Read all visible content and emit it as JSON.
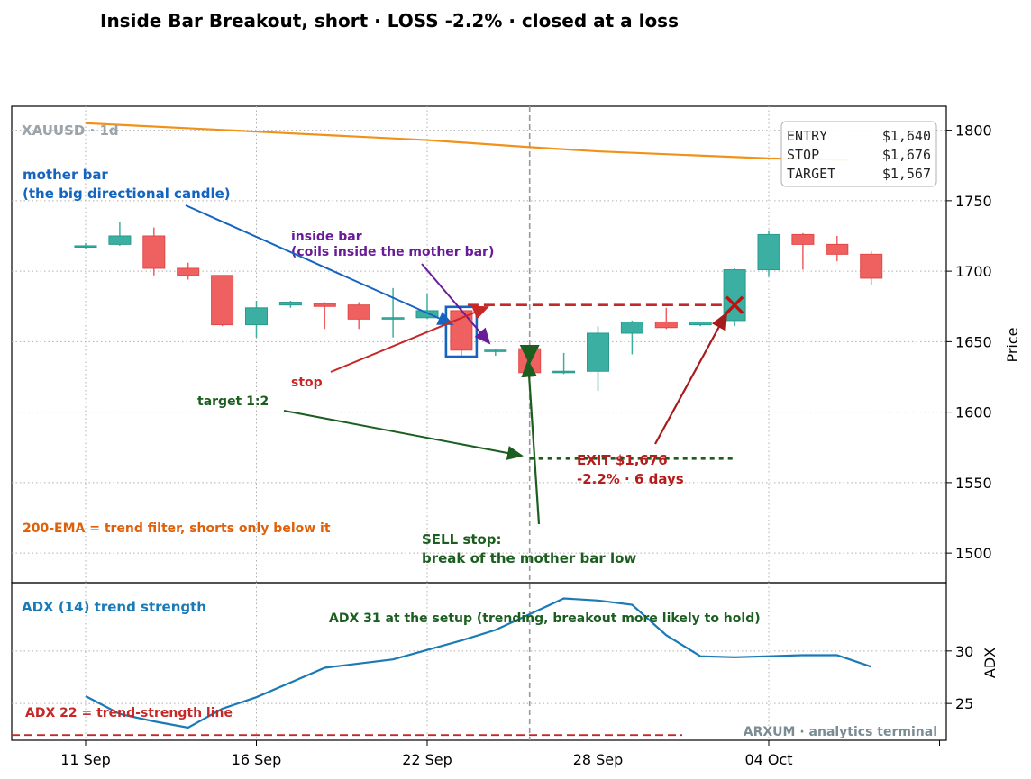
{
  "title": "Inside Bar Breakout, short · LOSS -2.2% · closed at a loss",
  "chart_data": {
    "type": "candlestick",
    "symbol_label": "XAUUSD · 1d",
    "x_labels": [
      "11 Sep",
      "16 Sep",
      "22 Sep",
      "28 Sep",
      "04 Oct"
    ],
    "x_tick_indices": [
      0,
      5,
      10,
      15,
      20
    ],
    "candles": [
      {
        "o": 1717,
        "h": 1720,
        "l": 1716,
        "c": 1718
      },
      {
        "o": 1719,
        "h": 1735,
        "l": 1718,
        "c": 1725
      },
      {
        "o": 1725,
        "h": 1731,
        "l": 1697,
        "c": 1702
      },
      {
        "o": 1702,
        "h": 1706,
        "l": 1694,
        "c": 1697
      },
      {
        "o": 1697,
        "h": 1697,
        "l": 1661,
        "c": 1662
      },
      {
        "o": 1662,
        "h": 1679,
        "l": 1653,
        "c": 1674
      },
      {
        "o": 1676,
        "h": 1679,
        "l": 1674,
        "c": 1678
      },
      {
        "o": 1677,
        "h": 1678,
        "l": 1659,
        "c": 1675
      },
      {
        "o": 1676,
        "h": 1678,
        "l": 1659,
        "c": 1666
      },
      {
        "o": 1666,
        "h": 1688,
        "l": 1653,
        "c": 1667
      },
      {
        "o": 1667,
        "h": 1684,
        "l": 1666,
        "c": 1672
      },
      {
        "o": 1672,
        "h": 1674,
        "l": 1640,
        "c": 1644
      },
      {
        "o": 1643,
        "h": 1645,
        "l": 1640,
        "c": 1644
      },
      {
        "o": 1645,
        "h": 1645,
        "l": 1623,
        "c": 1628
      },
      {
        "o": 1628,
        "h": 1642,
        "l": 1627,
        "c": 1629
      },
      {
        "o": 1629,
        "h": 1661,
        "l": 1615,
        "c": 1656
      },
      {
        "o": 1656,
        "h": 1665,
        "l": 1641,
        "c": 1664
      },
      {
        "o": 1664,
        "h": 1674,
        "l": 1659,
        "c": 1660
      },
      {
        "o": 1662,
        "h": 1664,
        "l": 1661,
        "c": 1664
      },
      {
        "o": 1665,
        "h": 1702,
        "l": 1661,
        "c": 1701
      },
      {
        "o": 1701,
        "h": 1729,
        "l": 1696,
        "c": 1726
      },
      {
        "o": 1726,
        "h": 1727,
        "l": 1701,
        "c": 1719
      },
      {
        "o": 1719,
        "h": 1725,
        "l": 1707,
        "c": 1712
      },
      {
        "o": 1712,
        "h": 1714,
        "l": 1690,
        "c": 1695
      }
    ],
    "ema200": [
      [
        0,
        1805
      ],
      [
        5,
        1799
      ],
      [
        10,
        1793
      ],
      [
        13,
        1788
      ],
      [
        15,
        1785
      ],
      [
        20,
        1780
      ],
      [
        22.3,
        1779
      ]
    ],
    "y_ticks": [
      1500,
      1550,
      1600,
      1650,
      1700,
      1750,
      1800
    ],
    "ylim": [
      1479,
      1817
    ],
    "ylabel": "Price",
    "entry": 1640,
    "stop": 1676,
    "target": 1567,
    "entry_index": 13,
    "exit_index": 19,
    "adx": [
      [
        0,
        25.7
      ],
      [
        1,
        24.0
      ],
      [
        2,
        23.3
      ],
      [
        3,
        22.7
      ],
      [
        4,
        24.5
      ],
      [
        5,
        25.6
      ],
      [
        6,
        27.0
      ],
      [
        7,
        28.4
      ],
      [
        8,
        28.8
      ],
      [
        9,
        29.2
      ],
      [
        10,
        30.1
      ],
      [
        11,
        31.0
      ],
      [
        12,
        32.0
      ],
      [
        13,
        33.5
      ],
      [
        14,
        35.0
      ],
      [
        15,
        34.8
      ],
      [
        16,
        34.4
      ],
      [
        17,
        31.5
      ],
      [
        18,
        29.5
      ],
      [
        19,
        29.4
      ],
      [
        20,
        29.5
      ],
      [
        21,
        29.6
      ],
      [
        22,
        29.6
      ],
      [
        23,
        28.5
      ]
    ],
    "adx_ticks": [
      25,
      30
    ],
    "adx_ylim": [
      21.5,
      36.5
    ],
    "adx_ylabel": "ADX",
    "adx_threshold": 22
  },
  "info_box": {
    "entry_label": "ENTRY",
    "entry_value": "$1,640",
    "stop_label": "STOP",
    "stop_value": "$1,676",
    "target_label": "TARGET",
    "target_value": "$1,567"
  },
  "annotations": {
    "mother_bar_1": "mother bar",
    "mother_bar_2": "(the big directional candle)",
    "inside_bar_1": "inside bar",
    "inside_bar_2": "(coils inside the mother bar)",
    "stop": "stop",
    "target": "target 1:2",
    "ema_note": "200-EMA = trend filter, shorts only below it",
    "sell_1": "SELL stop:",
    "sell_2": "break of the mother bar low",
    "exit_1": "EXIT $1,676",
    "exit_2": "-2.2%  ·  6 days",
    "adx_title": "ADX (14) trend strength",
    "adx_setup": "ADX 31 at the setup (trending, breakout more likely to hold)",
    "adx_threshold_label": "ADX 22 = trend-strength line",
    "watermark": "ARXUM · analytics terminal"
  },
  "colors": {
    "bull": "#3aafa2",
    "bear": "#ef6160",
    "ema": "#f0921a",
    "stop": "#c62828",
    "target": "#1b5e20",
    "adx": "#1a7ab5",
    "mother_box": "#1565c0",
    "mother_text": "#1565c0",
    "inside_text": "#6a1b9a",
    "ema_text": "#e0600a",
    "exit_text": "#b71c1c",
    "watermark": "#7a8c94",
    "symbol": "#9aa4aa"
  }
}
